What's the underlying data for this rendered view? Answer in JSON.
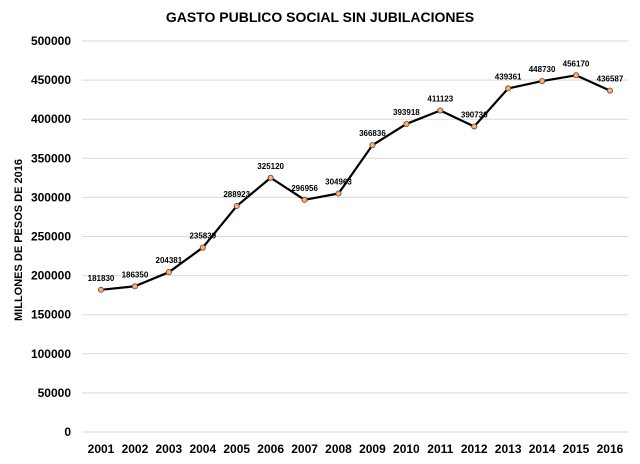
{
  "chart_data": {
    "type": "line",
    "title": "GASTO PUBLICO SOCIAL SIN JUBILACIONES",
    "xlabel": "",
    "ylabel": "MILLONES DE PESOS DE 2016",
    "categories": [
      "2001",
      "2002",
      "2003",
      "2004",
      "2005",
      "2006",
      "2007",
      "2008",
      "2009",
      "2010",
      "2011",
      "2012",
      "2013",
      "2014",
      "2015",
      "2016"
    ],
    "series": [
      {
        "values": [
          181830,
          186350,
          204381,
          235839,
          288923,
          325120,
          296956,
          304963,
          366836,
          393918,
          411123,
          390730,
          439361,
          448730,
          456170,
          436587
        ],
        "data_labels": [
          "181830",
          "186350",
          "204381",
          "235839",
          "288923",
          "325120",
          "296956",
          "304963",
          "366836",
          "393918",
          "411123",
          "390730",
          "439361",
          "448730",
          "456170",
          "436587"
        ]
      }
    ],
    "ylim": [
      0,
      500000
    ],
    "yticks": [
      "0",
      "50000",
      "100000",
      "150000",
      "200000",
      "250000",
      "300000",
      "350000",
      "400000",
      "450000",
      "500000"
    ],
    "grid": true,
    "legend": "none",
    "colors": {
      "line": "#000000",
      "marker": "#f4b183",
      "grid": "#d9d9d9"
    }
  }
}
